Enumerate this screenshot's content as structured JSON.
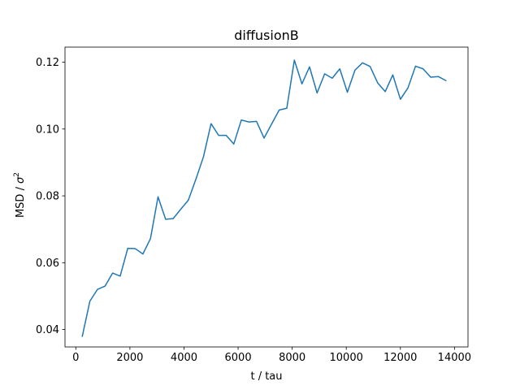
{
  "chart_data": {
    "type": "line",
    "title": "diffusionB",
    "xlabel": "t / tau",
    "ylabel_main": "MSD / ",
    "ylabel_sigma": "σ",
    "ylabel_exponent": "2",
    "xlim": [
      -400,
      14500
    ],
    "ylim": [
      0.0348,
      0.1245
    ],
    "x_ticks": [
      0,
      2000,
      4000,
      6000,
      8000,
      10000,
      12000,
      14000
    ],
    "x_tick_labels": [
      "0",
      "2000",
      "4000",
      "6000",
      "8000",
      "10000",
      "12000",
      "14000"
    ],
    "y_ticks": [
      0.04,
      0.06,
      0.08,
      0.1,
      0.12
    ],
    "y_tick_labels": [
      "0.04",
      "0.06",
      "0.08",
      "0.10",
      "0.12"
    ],
    "grid": false,
    "series": [
      {
        "name": "diffusionB",
        "color": "#1f77b4",
        "x": [
          240,
          520,
          800,
          1080,
          1360,
          1640,
          1920,
          2200,
          2480,
          2760,
          3040,
          3320,
          3600,
          3880,
          4160,
          4440,
          4720,
          5000,
          5280,
          5560,
          5840,
          6120,
          6400,
          6680,
          6960,
          7240,
          7520,
          7800,
          8080,
          8360,
          8640,
          8920,
          9200,
          9480,
          9760,
          10040,
          10320,
          10600,
          10880,
          11160,
          11440,
          11720,
          12000,
          12280,
          12560,
          12840,
          13120,
          13400,
          13680
        ],
        "values": [
          0.038,
          0.0485,
          0.052,
          0.053,
          0.0569,
          0.056,
          0.0643,
          0.0642,
          0.0626,
          0.0672,
          0.0797,
          0.073,
          0.0732,
          0.076,
          0.0787,
          0.085,
          0.0917,
          0.1016,
          0.0981,
          0.0981,
          0.0955,
          0.1027,
          0.1021,
          0.1023,
          0.0973,
          0.1015,
          0.1057,
          0.1062,
          0.1206,
          0.1135,
          0.1186,
          0.1108,
          0.1165,
          0.1152,
          0.118,
          0.111,
          0.1176,
          0.1198,
          0.1187,
          0.1138,
          0.1112,
          0.1162,
          0.1089,
          0.1123,
          0.1188,
          0.118,
          0.1155,
          0.1157,
          0.1145
        ]
      }
    ]
  }
}
